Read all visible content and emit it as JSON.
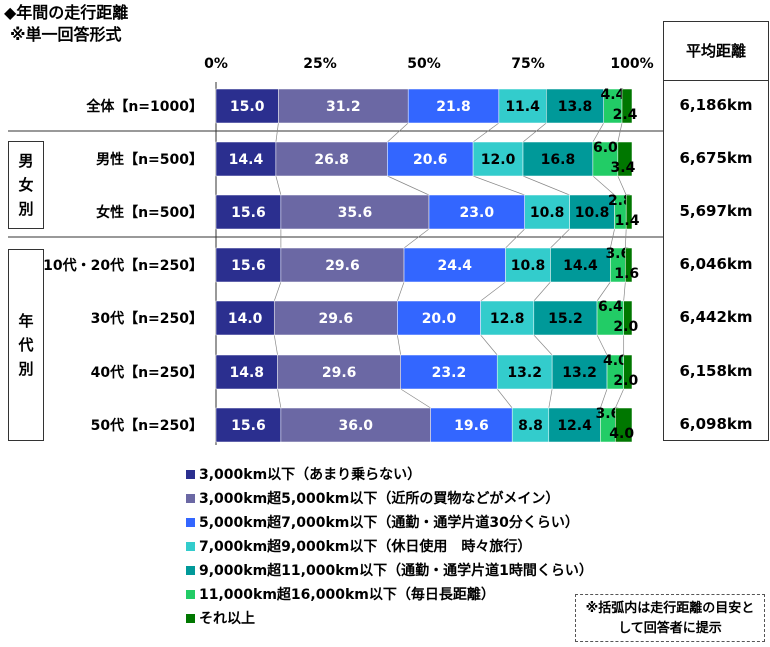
{
  "title": "◆年間の走行距離",
  "subtitle": "※単一回答形式",
  "avg_header": "平均距離",
  "groups": {
    "gender": [
      "男",
      "女",
      "別"
    ],
    "age": [
      "年",
      "代",
      "別"
    ]
  },
  "note": "※括弧内は走行距離の目安として回答者に提示",
  "colors": [
    "#2b2f8f",
    "#6b68a4",
    "#3366ff",
    "#33cccc",
    "#009999",
    "#22cc66",
    "#007700"
  ],
  "chart_data": {
    "type": "bar",
    "orientation": "horizontal",
    "stacked": true,
    "percent": true,
    "xlim": [
      0,
      100
    ],
    "x_ticks": [
      "0%",
      "25%",
      "50%",
      "75%",
      "100%"
    ],
    "categories": [
      "全体【n=1000】",
      "男性【n=500】",
      "女性【n=500】",
      "10代・20代【n=250】",
      "30代【n=250】",
      "40代【n=250】",
      "50代【n=250】"
    ],
    "series": [
      {
        "name": "3,000km以下（あまり乗らない）",
        "values": [
          15.0,
          14.4,
          15.6,
          15.6,
          14.0,
          14.8,
          15.6
        ]
      },
      {
        "name": "3,000km超5,000km以下（近所の買物などがメイン）",
        "values": [
          31.2,
          26.8,
          35.6,
          29.6,
          29.6,
          29.6,
          36.0
        ]
      },
      {
        "name": "5,000km超7,000km以下（通勤・通学片道30分くらい）",
        "values": [
          21.8,
          20.6,
          23.0,
          24.4,
          20.0,
          23.2,
          19.6
        ]
      },
      {
        "name": "7,000km超9,000km以下（休日使用　時々旅行）",
        "values": [
          11.4,
          12.0,
          10.8,
          10.8,
          12.8,
          13.2,
          8.8
        ]
      },
      {
        "name": "9,000km超11,000km以下（通勤・通学片道1時間くらい）",
        "values": [
          13.8,
          16.8,
          10.8,
          14.4,
          15.2,
          13.2,
          12.4
        ]
      },
      {
        "name": "11,000km超16,000km以下（毎日長距離）",
        "values": [
          4.4,
          6.0,
          2.8,
          3.6,
          6.4,
          4.0,
          3.6
        ]
      },
      {
        "name": "それ以上",
        "values": [
          2.4,
          3.4,
          1.4,
          1.6,
          2.0,
          2.0,
          4.0
        ]
      }
    ],
    "averages": [
      "6,186km",
      "6,675km",
      "5,697km",
      "6,046km",
      "6,442km",
      "6,158km",
      "6,098km"
    ]
  }
}
